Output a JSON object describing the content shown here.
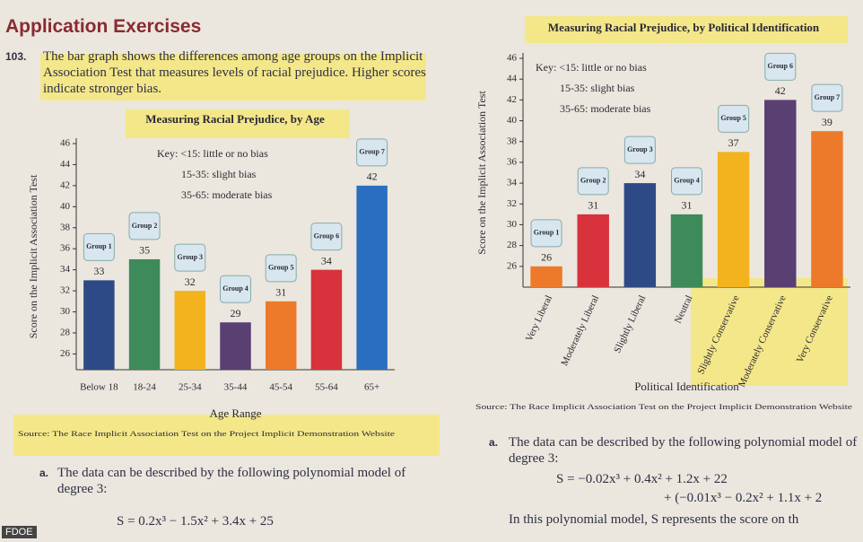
{
  "heading": "Application Exercises",
  "exercise": {
    "number": "103.",
    "text": "The bar graph shows the differences among age groups on the Implicit Association Test that measures levels of racial prejudice. Higher scores indicate stronger bias."
  },
  "left_part_a": {
    "label": "a.",
    "text": "The data can be described by the following polynomial model of degree 3:",
    "formula": "S = 0.2x³ − 1.5x² + 3.4x + 25"
  },
  "right_part_a": {
    "label": "a.",
    "text": "The data can be described by the following polynomial model of degree 3:",
    "formula_1": "S = −0.02x³ + 0.4x² + 1.2x + 22",
    "formula_2": "+ (−0.01x³ − 0.2x² + 1.1x + 2",
    "text_2": "In this polynomial model, S represents the score on th"
  },
  "watermark": "FDOE",
  "chart_data": [
    {
      "type": "bar",
      "title": "Measuring Racial Prejudice, by Age",
      "y_label": "Score on the Implicit Association Test",
      "x_label": "Age Range",
      "key": [
        "Key: <15: little or no bias",
        "15-35: slight bias",
        "35-65: moderate bias"
      ],
      "source": "Source: The Race Implicit Association Test on the Project Implicit Demonstration Website",
      "categories": [
        "Below 18",
        "18-24",
        "25-34",
        "35-44",
        "45-54",
        "55-64",
        "65+"
      ],
      "values": [
        33,
        35,
        32,
        29,
        31,
        34,
        42
      ],
      "group_labels": [
        "Group 1",
        "Group 2",
        "Group 3",
        "Group 4",
        "Group 5",
        "Group 6",
        "Group 7"
      ],
      "colors": [
        "#2e4a86",
        "#3e8a5a",
        "#f2b31e",
        "#5a3f73",
        "#ec7a2a",
        "#d8323c",
        "#2a6fbf"
      ],
      "ylim": [
        24.5,
        46
      ],
      "yticks": [
        26,
        28,
        30,
        32,
        34,
        36,
        38,
        40,
        42,
        44,
        46
      ]
    },
    {
      "type": "bar",
      "title": "Measuring Racial Prejudice, by Political Identification",
      "y_label": "Score on the Implicit Association Test",
      "x_label": "Political Identification",
      "key": [
        "Key: <15: little or no bias",
        "15-35: slight bias",
        "35-65: moderate bias"
      ],
      "source": "Source: The Race Implicit Association Test on the Project Implicit Demonstration Website",
      "categories": [
        "Very Liberal",
        "Moderately Liberal",
        "Slightly Liberal",
        "Neutral",
        "Slightly Conservative",
        "Moderately Conservative",
        "Very Conservative"
      ],
      "values": [
        26,
        31,
        34,
        31,
        37,
        42,
        39
      ],
      "group_labels": [
        "Group 1",
        "Group 2",
        "Group 3",
        "Group 4",
        "Group 5",
        "Group 6",
        "Group 7"
      ],
      "colors": [
        "#ec7a2a",
        "#d8323c",
        "#2e4a86",
        "#3e8a5a",
        "#f2b31e",
        "#5a3f73",
        "#ec7a2a"
      ],
      "ylim": [
        24,
        46
      ],
      "yticks": [
        26,
        28,
        30,
        32,
        34,
        36,
        38,
        40,
        42,
        44,
        46
      ]
    }
  ]
}
